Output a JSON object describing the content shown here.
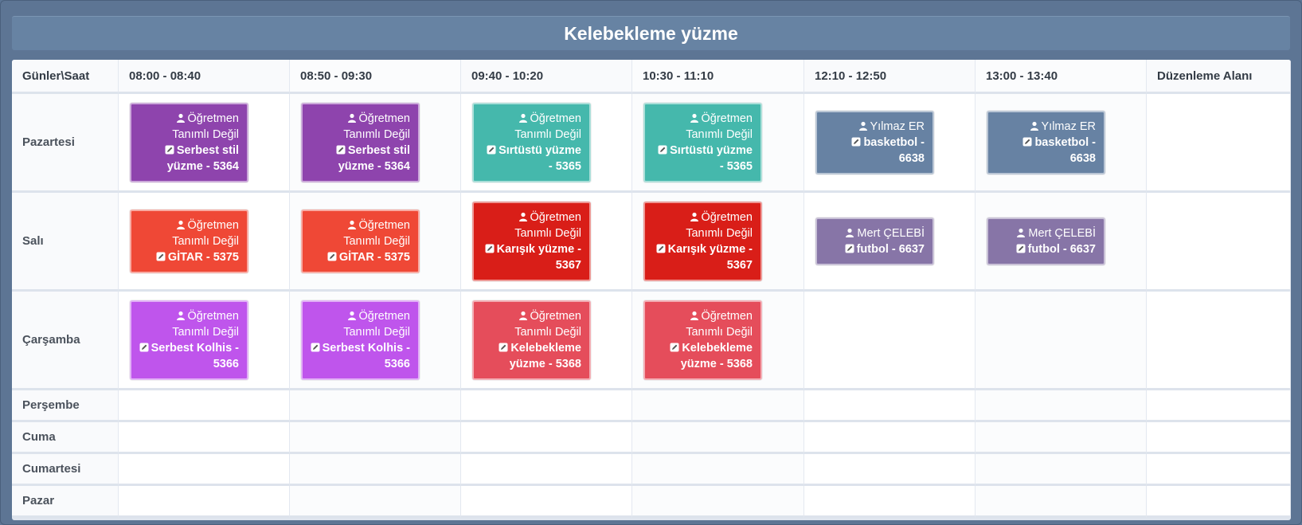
{
  "title": "Kelebekleme yüzme",
  "header": {
    "corner": "Günler\\Saat",
    "slots": [
      "08:00 - 08:40",
      "08:50 - 09:30",
      "09:40 - 10:20",
      "10:30 - 11:10",
      "12:10 - 12:50",
      "13:00 - 13:40"
    ],
    "edit_area": "Düzenleme Alanı"
  },
  "days": [
    "Pazartesi",
    "Salı",
    "Çarşamba",
    "Perşembe",
    "Cuma",
    "Cumartesi",
    "Pazar"
  ],
  "colors": {
    "serbest_stil": "#8e44ad",
    "sirtustu": "#45b8ac",
    "basketbol": "#6782a3",
    "gitar": "#ef4836",
    "karisik": "#d91e18",
    "futbol": "#8775a7",
    "serbest_kolhis": "#bf55ec",
    "kelebekleme": "#e54d5b"
  },
  "schedule": {
    "pazartesi": [
      {
        "teacher": "Öğretmen Tanımlı Değil",
        "lesson": "Serbest stil yüzme - 5364",
        "color": "#8e44ad"
      },
      {
        "teacher": "Öğretmen Tanımlı Değil",
        "lesson": "Serbest stil yüzme - 5364",
        "color": "#8e44ad"
      },
      {
        "teacher": "Öğretmen Tanımlı Değil",
        "lesson": "Sırtüstü yüzme - 5365",
        "color": "#45b8ac"
      },
      {
        "teacher": "Öğretmen Tanımlı Değil",
        "lesson": "Sırtüstü yüzme - 5365",
        "color": "#45b8ac"
      },
      {
        "teacher": "Yılmaz ER",
        "lesson": "basketbol - 6638",
        "color": "#6782a3"
      },
      {
        "teacher": "Yılmaz ER",
        "lesson": "basketbol - 6638",
        "color": "#6782a3"
      }
    ],
    "sali": [
      {
        "teacher": "Öğretmen Tanımlı Değil",
        "lesson": "GİTAR - 5375",
        "color": "#ef4836"
      },
      {
        "teacher": "Öğretmen Tanımlı Değil",
        "lesson": "GİTAR - 5375",
        "color": "#ef4836"
      },
      {
        "teacher": "Öğretmen Tanımlı Değil",
        "lesson": "Karışık yüzme - 5367",
        "color": "#d91e18"
      },
      {
        "teacher": "Öğretmen Tanımlı Değil",
        "lesson": "Karışık yüzme - 5367",
        "color": "#d91e18"
      },
      {
        "teacher": "Mert ÇELEBİ",
        "lesson": "futbol - 6637",
        "color": "#8775a7"
      },
      {
        "teacher": "Mert ÇELEBİ",
        "lesson": "futbol - 6637",
        "color": "#8775a7"
      }
    ],
    "carsamba": [
      {
        "teacher": "Öğretmen Tanımlı Değil",
        "lesson": "Serbest Kolhis - 5366",
        "color": "#bf55ec"
      },
      {
        "teacher": "Öğretmen Tanımlı Değil",
        "lesson": "Serbest Kolhis - 5366",
        "color": "#bf55ec"
      },
      {
        "teacher": "Öğretmen Tanımlı Değil",
        "lesson": "Kelebekleme yüzme - 5368",
        "color": "#e54d5b"
      },
      {
        "teacher": "Öğretmen Tanımlı Değil",
        "lesson": "Kelebekleme yüzme - 5368",
        "color": "#e54d5b"
      }
    ]
  }
}
